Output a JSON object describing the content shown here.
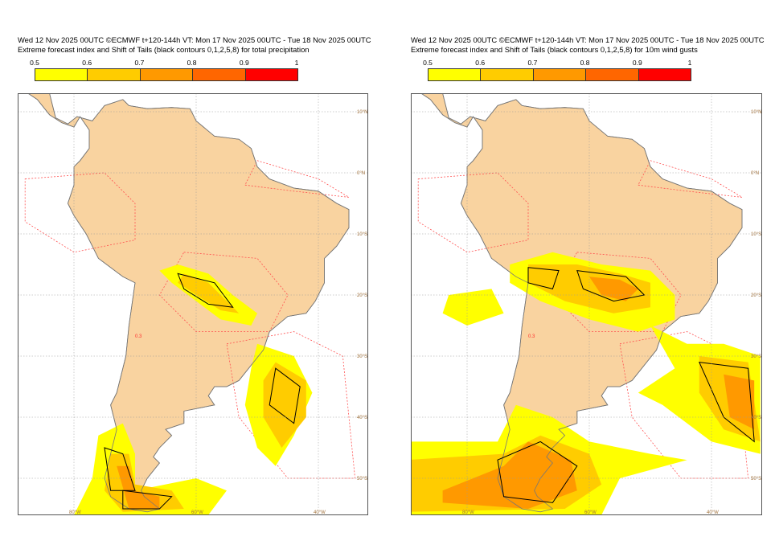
{
  "panels": [
    {
      "title_line1": "Wed 12 Nov 2025 00UTC ©ECMWF t+120-144h  VT: Mon 17 Nov 2025 00UTC - Tue 18 Nov 2025 00UTC",
      "title_line2": "Extreme forecast index and Shift of Tails (black contours 0,1,2,5,8) for total precipitation",
      "variable": "total precipitation"
    },
    {
      "title_line1": "Wed 12 Nov 2025 00UTC ©ECMWF t+120-144h  VT: Mon 17 Nov 2025 00UTC - Tue 18 Nov 2025 00UTC",
      "title_line2": "Extreme forecast index and Shift of Tails (black contours 0,1,2,5,8) for 10m wind gusts",
      "variable": "10m wind gusts"
    }
  ],
  "colorbar": {
    "ticks": [
      "0.5",
      "0.6",
      "0.7",
      "0.8",
      "0.9",
      "1"
    ],
    "colors": [
      "#ffff00",
      "#ffcc00",
      "#ff9900",
      "#ff6600",
      "#ff0000"
    ]
  },
  "land_color": "#f9d3a0",
  "contour_label": "0.3",
  "lon_labels": [
    "80°W",
    "60°W",
    "40°W"
  ],
  "lat_labels": [
    "10°N",
    "0°N",
    "10°S",
    "20°S",
    "30°S",
    "40°S",
    "50°S"
  ]
}
